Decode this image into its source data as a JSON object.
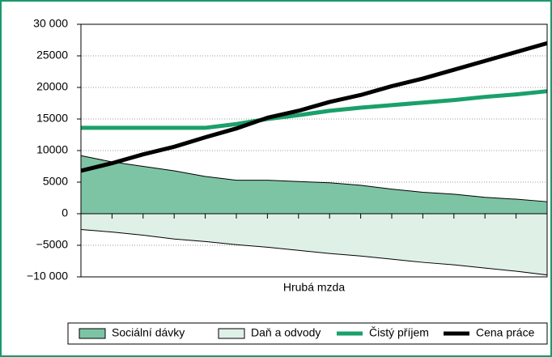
{
  "chart_data": {
    "type": "line",
    "x_label": "Hrubá mzda",
    "categories": [
      null,
      null,
      null,
      null,
      null,
      null,
      null,
      null,
      null,
      null,
      null,
      null,
      null,
      null,
      null,
      null
    ],
    "series": [
      {
        "name": "Sociální dávky",
        "type": "area",
        "color": "#7dc4a5",
        "values": [
          9200,
          8200,
          7500,
          6800,
          5900,
          5300,
          5300,
          5100,
          4900,
          4500,
          3900,
          3400,
          3100,
          2600,
          2300,
          1900
        ]
      },
      {
        "name": "Daň a odvody",
        "type": "area",
        "color": "#dff0e6",
        "values": [
          -2500,
          -2900,
          -3400,
          -4000,
          -4400,
          -4900,
          -5300,
          -5800,
          -6300,
          -6700,
          -7200,
          -7700,
          -8100,
          -8600,
          -9100,
          -9700
        ]
      },
      {
        "name": "Čistý příjem",
        "type": "line",
        "color": "#1aa06a",
        "values": [
          13600,
          13600,
          13600,
          13600,
          13600,
          14200,
          15000,
          15600,
          16300,
          16800,
          17200,
          17600,
          18000,
          18500,
          18900,
          19400
        ]
      },
      {
        "name": "Cena práce",
        "type": "line",
        "color": "#000000",
        "values": [
          6800,
          8000,
          9400,
          10600,
          12100,
          13500,
          15200,
          16300,
          17700,
          18800,
          20200,
          21400,
          22800,
          24200,
          25600,
          27000
        ]
      }
    ],
    "ylim": [
      -10000,
      30000
    ],
    "yticks": [
      {
        "value": 30000,
        "label": "30 000"
      },
      25000,
      20000,
      15000,
      10000,
      5000,
      0,
      {
        "value": -5000,
        "label": "−5000"
      },
      {
        "value": -10000,
        "label": "−10 000"
      }
    ],
    "grid": true,
    "legend": "bottom"
  }
}
